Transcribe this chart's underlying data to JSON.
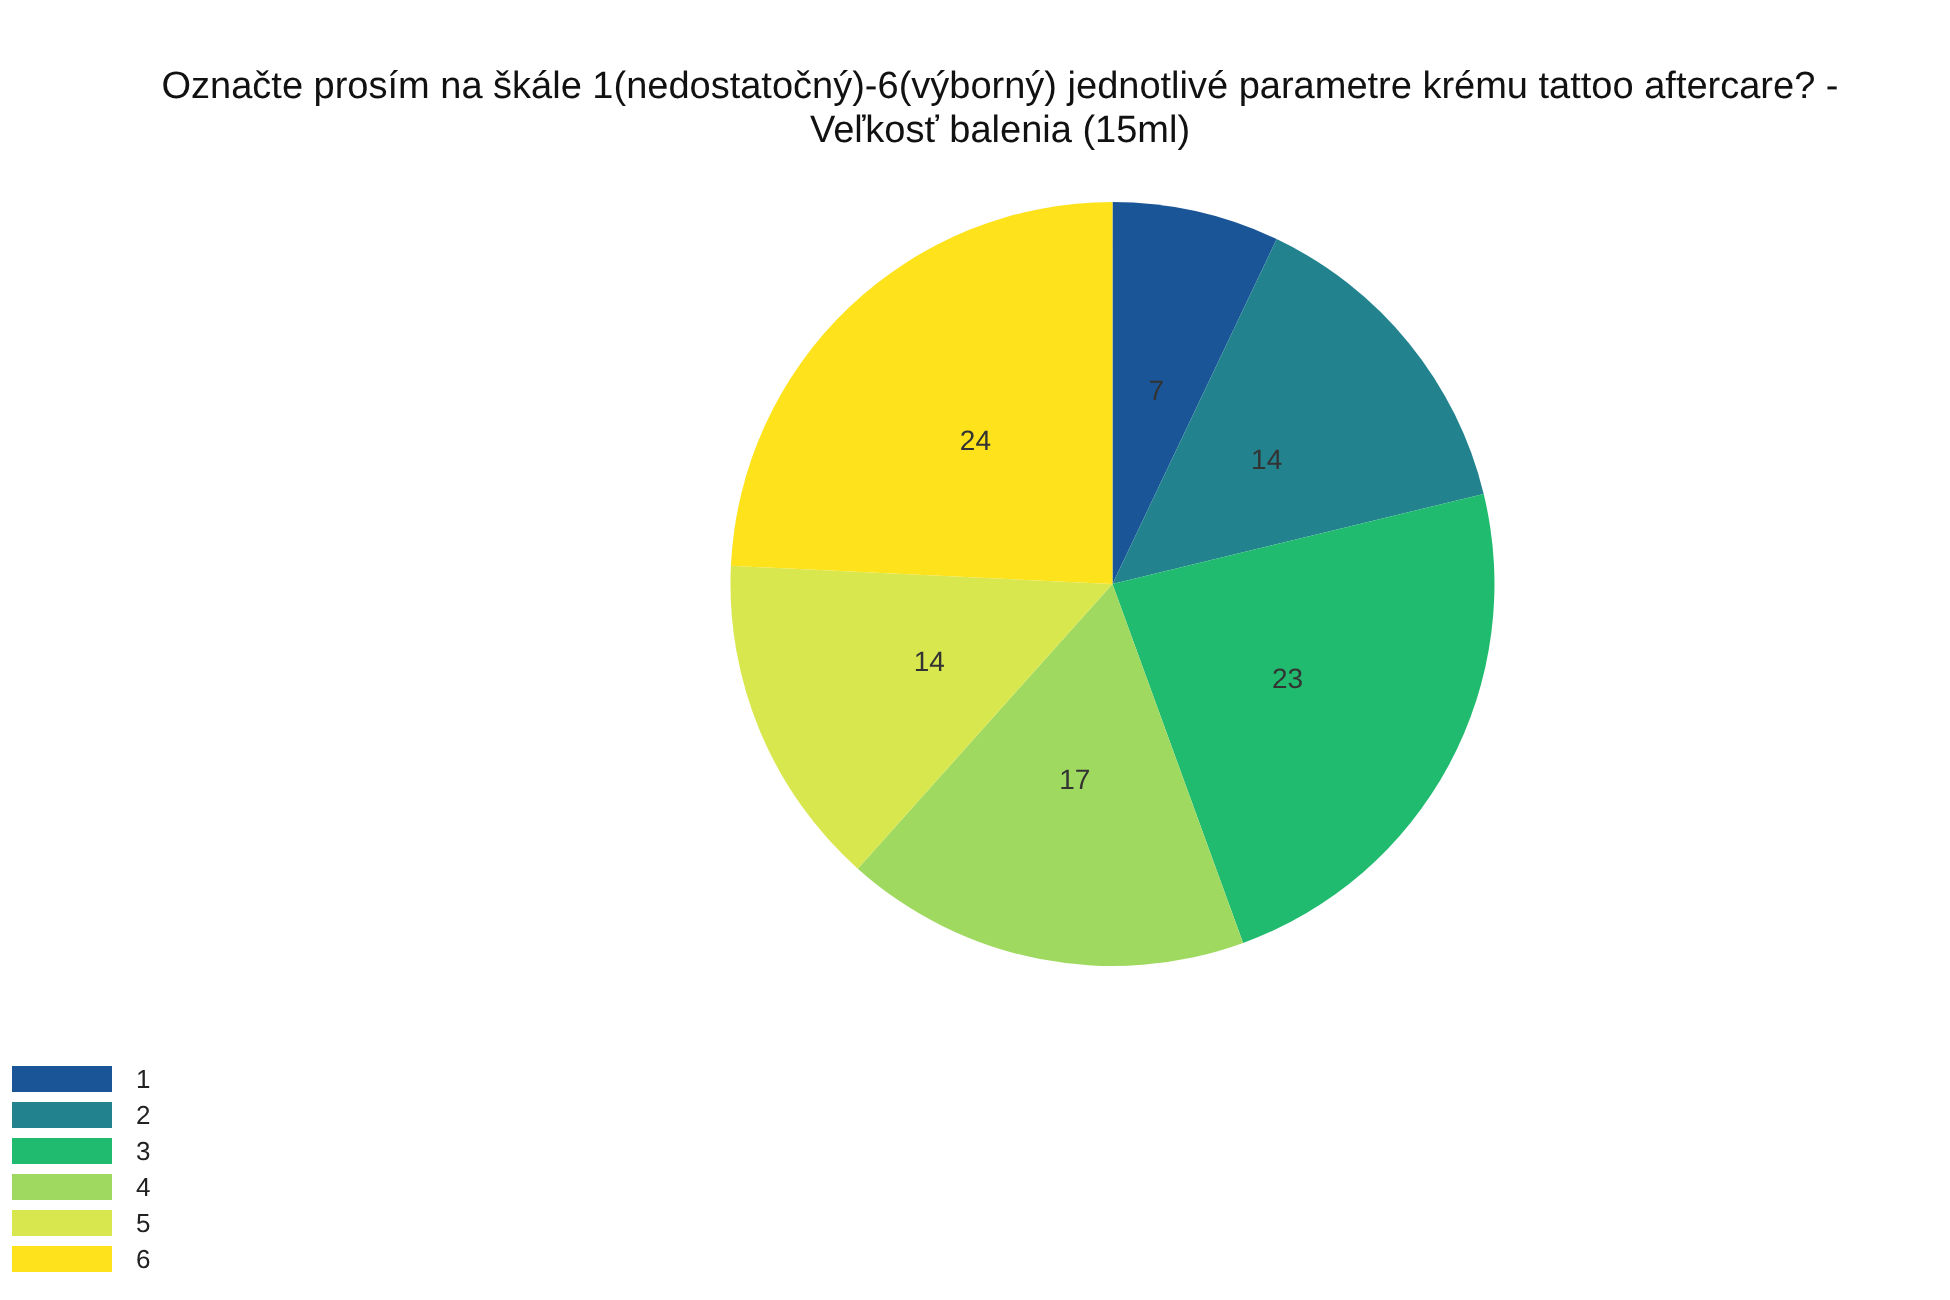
{
  "chart_data": {
    "type": "pie",
    "title": "Označte prosím na škále 1(nedostatočný)-6(výborný) jednotlivé parametre krému tattoo aftercare? - Veľkosť balenia (15ml)",
    "categories": [
      "1",
      "2",
      "3",
      "4",
      "5",
      "6"
    ],
    "values": [
      7,
      14,
      23,
      17,
      14,
      24
    ],
    "colors": [
      "#1a5597",
      "#22838f",
      "#20bb6e",
      "#a0d95f",
      "#d9e74f",
      "#fde21c"
    ],
    "data_labels": true,
    "legend": "bottom left"
  }
}
